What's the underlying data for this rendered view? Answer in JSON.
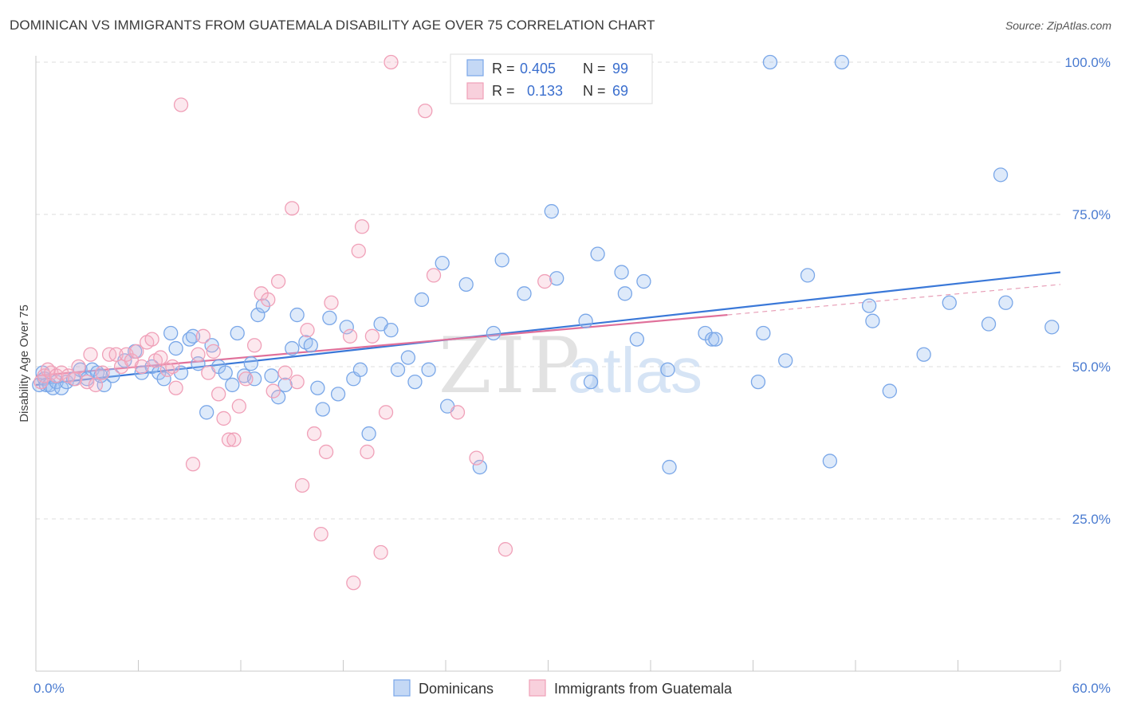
{
  "header": {
    "title": "DOMINICAN VS IMMIGRANTS FROM GUATEMALA DISABILITY AGE OVER 75 CORRELATION CHART",
    "source": "Source: ZipAtlas.com"
  },
  "watermark": {
    "zip": "ZIP",
    "atlas": "atlas"
  },
  "legend": {
    "entries": [
      {
        "r_label": "R =",
        "r_value": "0.405",
        "n_label": "N =",
        "n_value": "99",
        "color": "#7aa7e8"
      },
      {
        "r_label": "R =",
        "r_value": "0.133",
        "n_label": "N =",
        "n_value": "69",
        "color": "#f0a0b8"
      }
    ]
  },
  "chart_data": {
    "type": "scatter",
    "title": "DOMINICAN VS IMMIGRANTS FROM GUATEMALA DISABILITY AGE OVER 75 CORRELATION CHART",
    "ylabel": "Disability Age Over 75",
    "xlabel": "",
    "xlim": [
      0,
      60
    ],
    "ylim": [
      0,
      104
    ],
    "x_ticks_labels": [
      "0.0%",
      "60.0%"
    ],
    "y_ticks": [
      25,
      50,
      75,
      100
    ],
    "y_tick_labels": [
      "25.0%",
      "50.0%",
      "75.0%",
      "100.0%"
    ],
    "grid": "horizontal dashed",
    "legend_placement": "top-center",
    "series": [
      {
        "name": "Dominicans",
        "color": "#7aa7e8",
        "trend": {
          "x0": 0,
          "y0": 47.0,
          "x1": 60,
          "y1": 65.5
        },
        "points": [
          [
            0.2,
            47
          ],
          [
            0.4,
            49
          ],
          [
            0.5,
            48
          ],
          [
            0.6,
            47
          ],
          [
            0.8,
            47
          ],
          [
            1.0,
            46.5
          ],
          [
            1.2,
            47.5
          ],
          [
            1.5,
            46.5
          ],
          [
            1.8,
            47.5
          ],
          [
            2.2,
            48
          ],
          [
            2.6,
            49.5
          ],
          [
            3.0,
            48
          ],
          [
            3.3,
            49.5
          ],
          [
            3.6,
            49
          ],
          [
            4.0,
            47
          ],
          [
            4.5,
            48.5
          ],
          [
            5.2,
            51
          ],
          [
            5.8,
            52.5
          ],
          [
            6.2,
            49
          ],
          [
            6.8,
            50
          ],
          [
            7.2,
            49
          ],
          [
            7.5,
            48
          ],
          [
            7.9,
            55.5
          ],
          [
            8.2,
            53
          ],
          [
            8.5,
            49
          ],
          [
            9.0,
            54.5
          ],
          [
            9.5,
            50.5
          ],
          [
            10,
            42.5
          ],
          [
            10.3,
            53.5
          ],
          [
            10.7,
            50
          ],
          [
            11.1,
            49
          ],
          [
            11.5,
            47
          ],
          [
            11.8,
            55.5
          ],
          [
            12.2,
            48.5
          ],
          [
            12.6,
            50.5
          ],
          [
            13.0,
            58.5
          ],
          [
            13.3,
            60
          ],
          [
            13.8,
            48.5
          ],
          [
            14.2,
            45
          ],
          [
            14.6,
            47
          ],
          [
            15.0,
            53
          ],
          [
            15.3,
            58.5
          ],
          [
            15.8,
            54
          ],
          [
            16.1,
            53.5
          ],
          [
            16.5,
            46.5
          ],
          [
            16.8,
            43
          ],
          [
            17.2,
            58
          ],
          [
            17.7,
            45.5
          ],
          [
            18.2,
            56.5
          ],
          [
            18.6,
            48
          ],
          [
            19.0,
            49.5
          ],
          [
            19.5,
            39
          ],
          [
            20.2,
            57
          ],
          [
            20.8,
            56
          ],
          [
            21.2,
            49.5
          ],
          [
            21.8,
            51.5
          ],
          [
            22.2,
            47.5
          ],
          [
            22.6,
            61
          ],
          [
            23.0,
            49.5
          ],
          [
            23.8,
            67
          ],
          [
            24.1,
            43.5
          ],
          [
            25.2,
            63.5
          ],
          [
            26.0,
            33.5
          ],
          [
            26.8,
            55.5
          ],
          [
            27.3,
            67.5
          ],
          [
            28.6,
            62
          ],
          [
            30.2,
            75.5
          ],
          [
            30.5,
            64.5
          ],
          [
            32.2,
            57.5
          ],
          [
            32.5,
            47.5
          ],
          [
            32.9,
            68.5
          ],
          [
            34.3,
            65.5
          ],
          [
            34.5,
            62
          ],
          [
            35.2,
            54.5
          ],
          [
            35.6,
            64
          ],
          [
            37.0,
            49.5
          ],
          [
            37.1,
            33.5
          ],
          [
            39.2,
            55.5
          ],
          [
            39.6,
            54.5
          ],
          [
            39.8,
            54.5
          ],
          [
            42.3,
            47.5
          ],
          [
            42.6,
            55.5
          ],
          [
            43.0,
            100
          ],
          [
            43.9,
            51
          ],
          [
            45.2,
            65
          ],
          [
            46.5,
            34.5
          ],
          [
            47.2,
            100
          ],
          [
            48.8,
            60
          ],
          [
            49.0,
            57.5
          ],
          [
            50.0,
            46
          ],
          [
            52.0,
            52
          ],
          [
            53.5,
            60.5
          ],
          [
            55.8,
            57
          ],
          [
            56.5,
            81.5
          ],
          [
            56.8,
            60.5
          ],
          [
            59.5,
            56.5
          ],
          [
            9.2,
            55
          ],
          [
            12.8,
            48
          ],
          [
            3.8,
            48.5
          ]
        ]
      },
      {
        "name": "Immigrants from Guatemala",
        "color": "#f0a0b8",
        "trend": {
          "x0": 0,
          "y0": 48.5,
          "x1": 40.5,
          "y1": 58.5
        },
        "trend_dashed": {
          "x0": 40.5,
          "y0": 58.5,
          "x1": 60,
          "y1": 63.5
        },
        "points": [
          [
            0.3,
            47.5
          ],
          [
            0.5,
            48.5
          ],
          [
            0.7,
            49.5
          ],
          [
            0.9,
            49
          ],
          [
            1.2,
            48.5
          ],
          [
            1.5,
            49
          ],
          [
            1.9,
            48.5
          ],
          [
            2.3,
            48
          ],
          [
            2.5,
            50
          ],
          [
            3.0,
            47.5
          ],
          [
            3.2,
            52
          ],
          [
            3.5,
            47
          ],
          [
            3.9,
            49
          ],
          [
            4.3,
            52
          ],
          [
            4.7,
            52
          ],
          [
            5.0,
            50
          ],
          [
            5.3,
            52
          ],
          [
            5.6,
            51
          ],
          [
            5.9,
            52.5
          ],
          [
            6.2,
            50
          ],
          [
            6.5,
            54
          ],
          [
            6.8,
            54.5
          ],
          [
            7.0,
            51
          ],
          [
            7.3,
            51.5
          ],
          [
            7.7,
            49.5
          ],
          [
            8.0,
            50
          ],
          [
            8.2,
            46.5
          ],
          [
            8.5,
            93
          ],
          [
            9.2,
            34
          ],
          [
            9.5,
            52
          ],
          [
            9.8,
            55
          ],
          [
            10.1,
            49
          ],
          [
            10.4,
            52.5
          ],
          [
            10.7,
            45.5
          ],
          [
            11.0,
            41.5
          ],
          [
            11.3,
            38
          ],
          [
            11.6,
            38
          ],
          [
            11.9,
            43.5
          ],
          [
            12.3,
            48
          ],
          [
            12.8,
            53.5
          ],
          [
            13.2,
            62
          ],
          [
            13.6,
            61
          ],
          [
            13.9,
            46
          ],
          [
            14.2,
            64
          ],
          [
            14.6,
            49
          ],
          [
            15.0,
            76
          ],
          [
            15.3,
            47.5
          ],
          [
            15.6,
            30.5
          ],
          [
            15.9,
            56
          ],
          [
            16.3,
            39
          ],
          [
            16.7,
            22.5
          ],
          [
            17.0,
            36
          ],
          [
            17.3,
            60.5
          ],
          [
            18.4,
            55
          ],
          [
            18.6,
            14.5
          ],
          [
            18.9,
            69
          ],
          [
            19.1,
            73
          ],
          [
            19.7,
            55
          ],
          [
            20.2,
            19.5
          ],
          [
            20.5,
            42.5
          ],
          [
            20.8,
            100
          ],
          [
            22.8,
            92
          ],
          [
            23.3,
            65
          ],
          [
            24.7,
            42.5
          ],
          [
            25.8,
            35
          ],
          [
            27.5,
            20
          ],
          [
            29.8,
            64
          ],
          [
            35.5,
            100
          ],
          [
            19.4,
            36
          ]
        ]
      }
    ]
  },
  "bottom_legend": {
    "items": [
      {
        "label": "Dominicans",
        "color": "#7aa7e8"
      },
      {
        "label": "Immigrants from Guatemala",
        "color": "#f0a0b8"
      }
    ]
  }
}
